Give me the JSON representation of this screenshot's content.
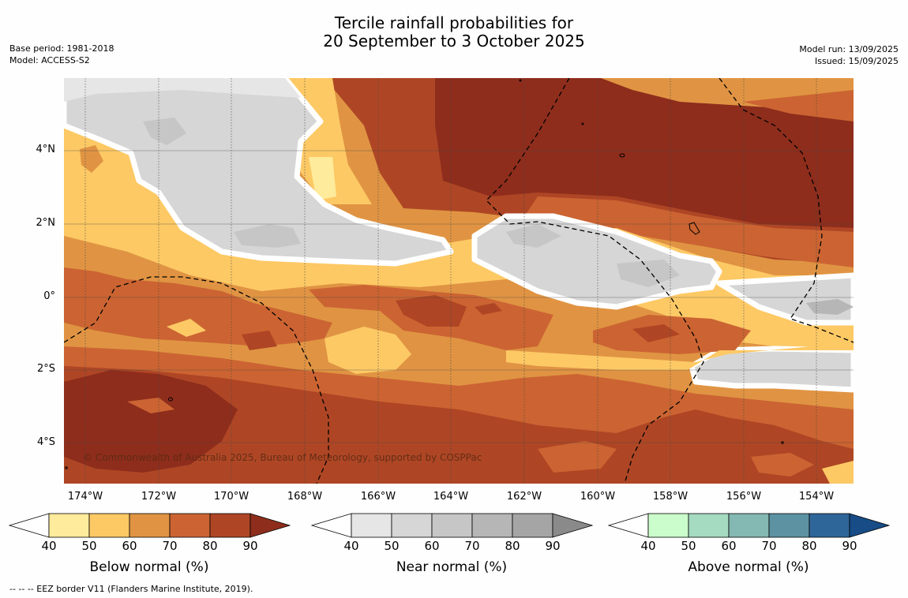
{
  "title": {
    "line1": "Tercile rainfall probabilities for",
    "line2": "20 September to 3 October 2025"
  },
  "meta_left": {
    "base_period": "Base period: 1981-2018",
    "model": "Model: ACCESS-S2"
  },
  "meta_right": {
    "model_run": "Model run: 13/09/2025",
    "issued": "Issued: 15/09/2025"
  },
  "copyright": "© Commonwealth of Australia 2025, Bureau of Meteorology, supported by COSPPac",
  "x_ticks": [
    "174°W",
    "172°W",
    "170°W",
    "168°W",
    "166°W",
    "164°W",
    "162°W",
    "160°W",
    "158°W",
    "156°W",
    "154°W"
  ],
  "y_ticks": [
    "4°N",
    "2°N",
    "0°",
    "2°S",
    "4°S"
  ],
  "colorbars": [
    {
      "title": "Below normal (%)",
      "ticks": [
        "40",
        "50",
        "60",
        "70",
        "80",
        "90"
      ],
      "colors": [
        "#ffffff",
        "#ffeb9c",
        "#fdc965",
        "#e09443",
        "#cb6432",
        "#ae4625",
        "#8e2d1c"
      ]
    },
    {
      "title": "Near normal (%)",
      "ticks": [
        "40",
        "50",
        "60",
        "70",
        "80",
        "90"
      ],
      "colors": [
        "#ffffff",
        "#e6e6e6",
        "#d6d6d6",
        "#c6c6c6",
        "#b6b6b6",
        "#a5a5a5",
        "#8a8a8a"
      ]
    },
    {
      "title": "Above normal (%)",
      "ticks": [
        "40",
        "50",
        "60",
        "70",
        "80",
        "90"
      ],
      "colors": [
        "#ffffff",
        "#cbfccb",
        "#a5dbc0",
        "#84b8b2",
        "#5c92a2",
        "#2f6699",
        "#174c86"
      ]
    }
  ],
  "eez_legend": "-- -- -- EEZ border V11 (Flanders Marine Institute, 2019)."
}
